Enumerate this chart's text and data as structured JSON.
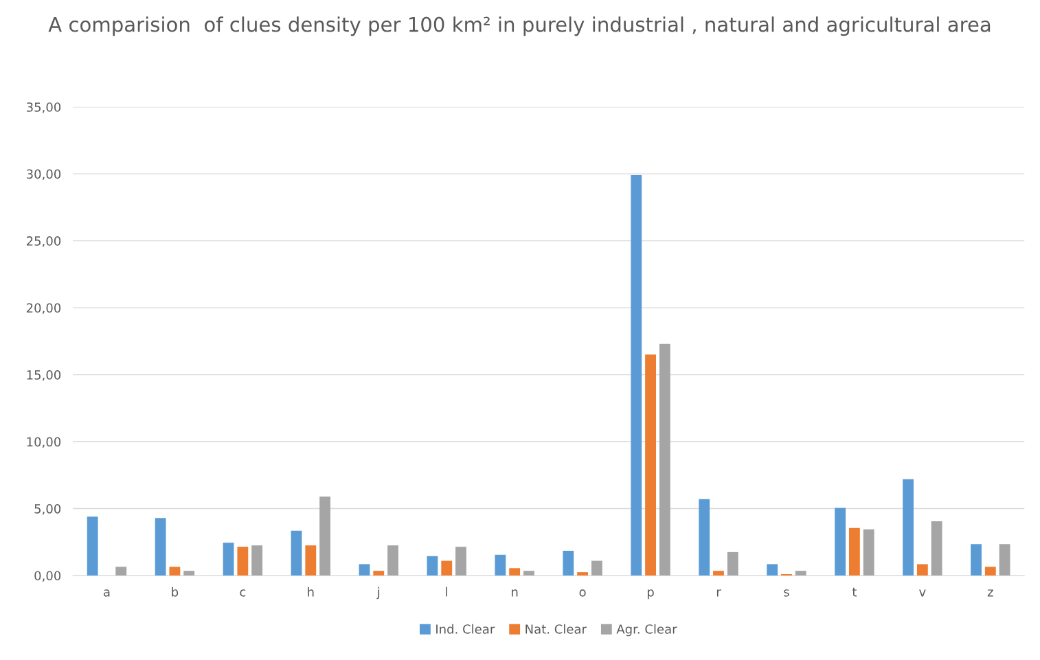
{
  "chart_data": {
    "type": "bar",
    "title": "A comparision  of clues density per 100 km² in purely industrial , natural and agricultural area",
    "categories": [
      "a",
      "b",
      "c",
      "h",
      "j",
      "l",
      "n",
      "o",
      "p",
      "r",
      "s",
      "t",
      "v",
      "z"
    ],
    "series": [
      {
        "name": "Ind. Clear",
        "color": "#5b9bd5",
        "values": [
          4.4,
          4.3,
          2.45,
          3.35,
          0.85,
          1.45,
          1.55,
          1.85,
          29.9,
          5.7,
          0.85,
          5.05,
          7.2,
          2.35
        ]
      },
      {
        "name": "Nat. Clear",
        "color": "#ed7d31",
        "values": [
          0,
          0.65,
          2.15,
          2.25,
          0.35,
          1.1,
          0.55,
          0.25,
          16.5,
          0.35,
          0.1,
          3.55,
          0.85,
          0.65
        ]
      },
      {
        "name": "Agr. Clear",
        "color": "#a5a5a5",
        "values": [
          0.65,
          0.35,
          2.25,
          5.9,
          2.25,
          2.15,
          0.35,
          1.1,
          17.3,
          1.75,
          0.35,
          3.45,
          4.05,
          2.35
        ]
      }
    ],
    "ylim": [
      0,
      35
    ],
    "yticks": [
      {
        "value": 0,
        "label": "0,00"
      },
      {
        "value": 5,
        "label": "5,00"
      },
      {
        "value": 10,
        "label": "10,00"
      },
      {
        "value": 15,
        "label": "15,00"
      },
      {
        "value": 20,
        "label": "20,00"
      },
      {
        "value": 25,
        "label": "25,00"
      },
      {
        "value": 30,
        "label": "30,00"
      },
      {
        "value": 35,
        "label": "35,00"
      }
    ],
    "grid": "y",
    "legend": "bottom"
  }
}
